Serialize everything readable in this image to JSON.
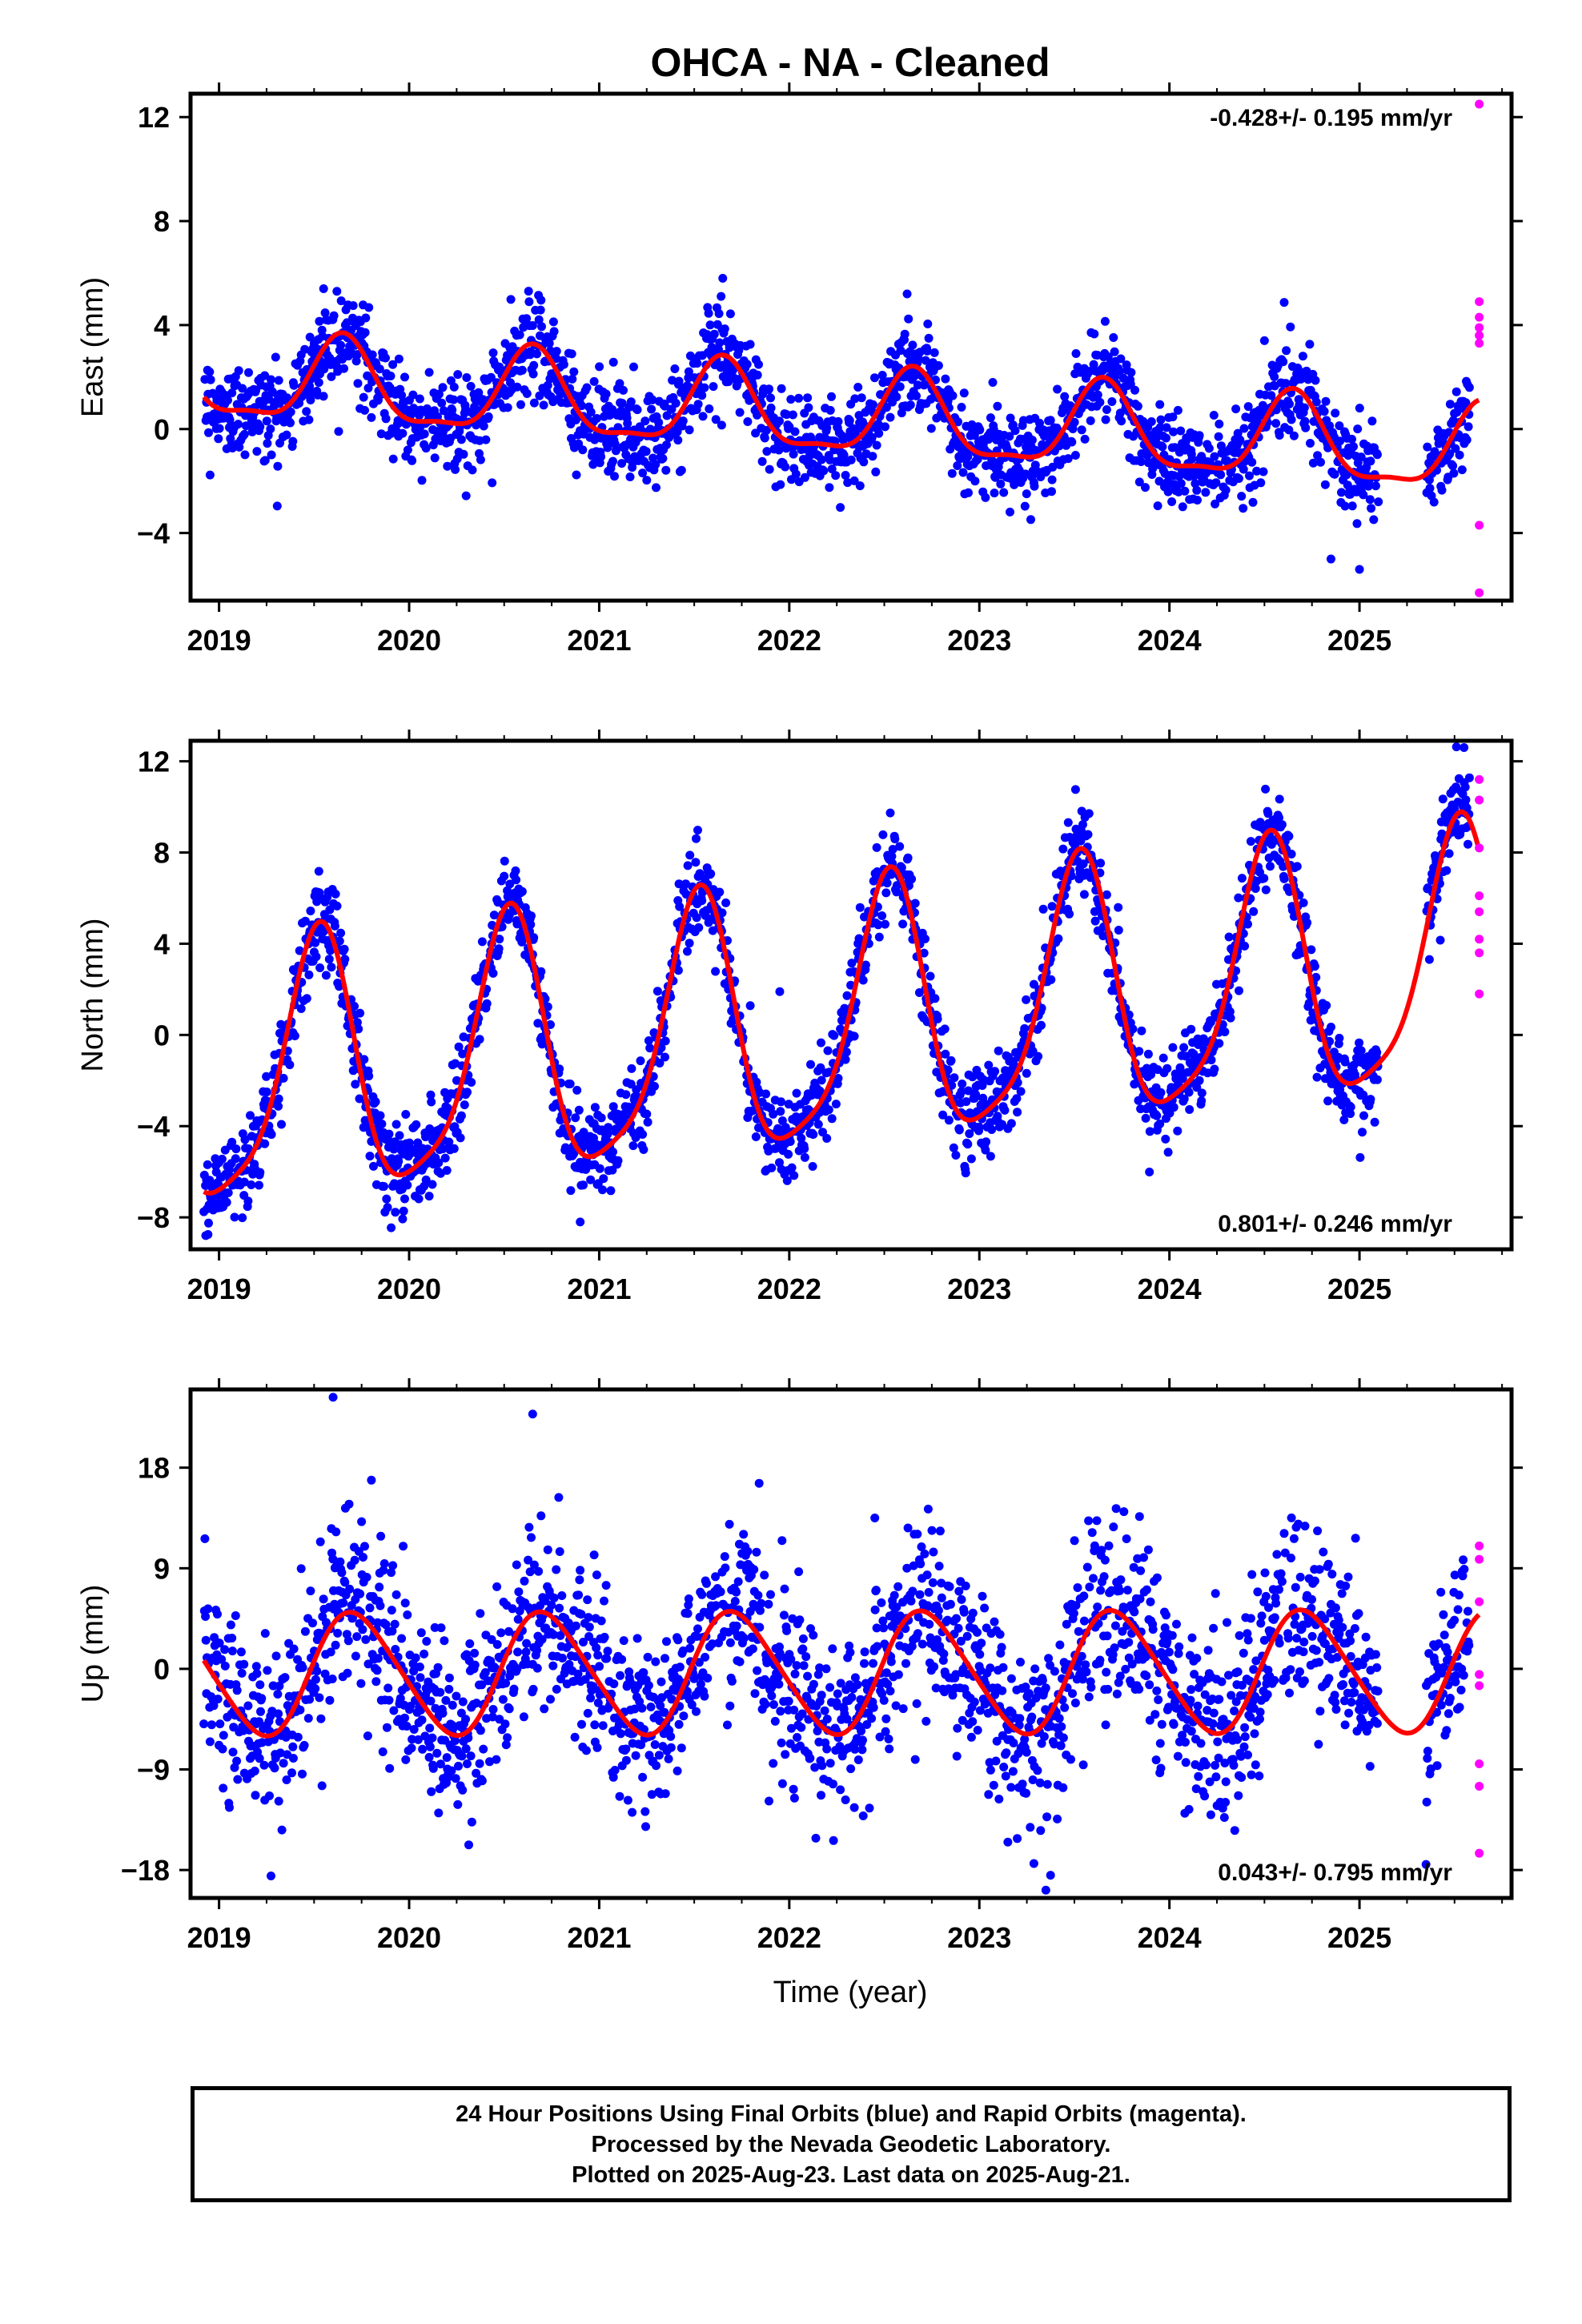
{
  "title": "OHCA  - NA - Cleaned",
  "xlabel": "Time (year)",
  "footer": {
    "line1": "24 Hour Positions Using Final Orbits (blue) and Rapid Orbits (magenta).",
    "line2": "Processed by the Nevada Geodetic Laboratory.",
    "line3": "Plotted on 2025-Aug-23. Last data on 2025-Aug-21."
  },
  "colors": {
    "final": "#0000ff",
    "rapid": "#ff00ff",
    "model": "#ff0000"
  },
  "chart_data": [
    {
      "type": "scatter",
      "panel": "east",
      "ylabel": "East (mm)",
      "rate_text": "-0.428+/- 0.195 mm/yr",
      "rate_position": "top-right",
      "xlim": [
        2018.85,
        2025.8
      ],
      "ylim": [
        -6.6,
        12.9
      ],
      "yticks": [
        12,
        8,
        4,
        0,
        -4
      ],
      "xticks": [
        2019,
        2020,
        2021,
        2022,
        2023,
        2024,
        2025
      ],
      "model": {
        "offset": 0.6,
        "trend": -0.428,
        "annual_amp": 1.6,
        "annual_peak": 0.65,
        "semi_amp": 0.5,
        "semi_peak": 0.15
      },
      "scatter_sd": 0.9,
      "data_start": 2018.92,
      "data_end": 2025.58,
      "gaps": [
        [
          2025.1,
          2025.35
        ]
      ],
      "model_end": 2025.63,
      "rapid": {
        "x": [
          2025.63,
          2025.63,
          2025.63,
          2025.63,
          2025.63,
          2025.63,
          2025.63,
          2025.63
        ],
        "y": [
          12.5,
          4.9,
          4.3,
          3.9,
          3.6,
          3.3,
          -3.7,
          -6.3
        ]
      },
      "outliers": {
        "x": [
          2019.55,
          2019.62,
          2021.65,
          2022.62,
          2024.5,
          2024.85,
          2025.0
        ],
        "y": [
          5.4,
          5.3,
          5.8,
          5.2,
          3.4,
          -5.0,
          -5.4
        ]
      }
    },
    {
      "type": "scatter",
      "panel": "north",
      "ylabel": "North (mm)",
      "rate_text": "0.801+/- 0.246 mm/yr",
      "rate_position": "bottom-right",
      "xlim": [
        2018.85,
        2025.8
      ],
      "ylim": [
        -9.4,
        12.9
      ],
      "yticks": [
        12,
        8,
        4,
        0,
        -4,
        -8
      ],
      "xticks": [
        2019,
        2020,
        2021,
        2022,
        2023,
        2024,
        2025
      ],
      "model": {
        "offset": 0.2,
        "trend": 0.801,
        "annual_amp": 5.6,
        "annual_peak": 0.52,
        "semi_amp": 1.2,
        "semi_peak": 0.05
      },
      "scatter_sd": 1.0,
      "data_start": 2018.92,
      "data_end": 2025.58,
      "gaps": [
        [
          2025.1,
          2025.35
        ]
      ],
      "model_end": 2025.63,
      "rapid": {
        "x": [
          2025.63,
          2025.63,
          2025.63,
          2025.63,
          2025.63,
          2025.63,
          2025.63,
          2025.63
        ],
        "y": [
          11.2,
          10.3,
          8.2,
          6.1,
          5.4,
          4.2,
          3.6,
          1.8
        ]
      },
      "outliers": {
        "x": [
          2018.93,
          2020.9,
          2021.95,
          2025.55
        ],
        "y": [
          -8.8,
          -8.2,
          1.9,
          12.6
        ]
      }
    },
    {
      "type": "scatter",
      "panel": "up",
      "ylabel": "Up (mm)",
      "rate_text": "0.043+/- 0.795 mm/yr",
      "rate_position": "bottom-right",
      "xlim": [
        2018.85,
        2025.8
      ],
      "ylim": [
        -20.5,
        25.0
      ],
      "yticks": [
        18,
        9,
        0,
        -9,
        -18
      ],
      "xticks": [
        2019,
        2020,
        2021,
        2022,
        2023,
        2024,
        2025
      ],
      "model": {
        "offset": -0.4,
        "trend": 0.043,
        "annual_amp": 5.4,
        "annual_peak": 0.72,
        "semi_amp": 0.6,
        "semi_peak": 0.1
      },
      "scatter_sd": 4.0,
      "data_start": 2018.92,
      "data_end": 2025.58,
      "gaps": [
        [
          2025.1,
          2025.35
        ]
      ],
      "model_end": 2025.63,
      "rapid": {
        "x": [
          2025.63,
          2025.63,
          2025.63,
          2025.63,
          2025.63,
          2025.63,
          2025.63,
          2025.63
        ],
        "y": [
          11.0,
          9.8,
          6.0,
          -0.5,
          -1.5,
          -8.5,
          -10.5,
          -16.5
        ]
      },
      "outliers": {
        "x": [
          2019.6,
          2020.65,
          2025.35,
          2023.35,
          2022.45,
          2023.15
        ],
        "y": [
          24.3,
          22.8,
          -17.5,
          -19.8,
          13.5,
          -15.5
        ]
      }
    }
  ]
}
